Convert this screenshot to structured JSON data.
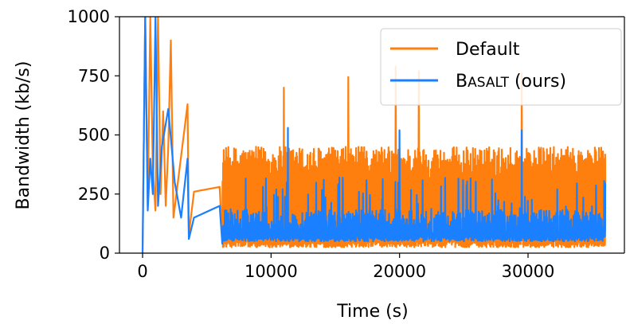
{
  "chart_data": {
    "type": "line",
    "xlabel": "Time (s)",
    "ylabel": "Bandwidth (kb/s)",
    "xlim": [
      -1800,
      37500
    ],
    "ylim": [
      0,
      1000
    ],
    "xticks": [
      0,
      10000,
      20000,
      30000
    ],
    "yticks": [
      0,
      250,
      500,
      750,
      1000
    ],
    "grid": false,
    "legend_position": "top-right",
    "series": [
      {
        "name": "Default",
        "color": "#ff7f0e",
        "x_range": [
          0,
          36000
        ],
        "baseline_approx": 40,
        "typical_peak_approx": 450,
        "points": [
          [
            0,
            0
          ],
          [
            200,
            1000
          ],
          [
            400,
            200
          ],
          [
            600,
            1000
          ],
          [
            800,
            350
          ],
          [
            1000,
            180
          ],
          [
            1200,
            1000
          ],
          [
            1400,
            250
          ],
          [
            1600,
            600
          ],
          [
            1800,
            200
          ],
          [
            2000,
            450
          ],
          [
            2200,
            900
          ],
          [
            2400,
            150
          ],
          [
            3500,
            630
          ],
          [
            3600,
            80
          ],
          [
            4000,
            260
          ],
          [
            6000,
            280
          ],
          [
            6200,
            50
          ],
          [
            11000,
            700
          ],
          [
            16000,
            745
          ],
          [
            19700,
            790
          ],
          [
            21500,
            770
          ],
          [
            29500,
            760
          ],
          [
            36000,
            420
          ]
        ]
      },
      {
        "name": "Basalt (ours)",
        "name_parts": [
          "B",
          "ASALT",
          " (ours)"
        ],
        "color": "#1a80ff",
        "x_range": [
          0,
          36000
        ],
        "baseline_approx": 70,
        "typical_peak_approx": 250,
        "points": [
          [
            0,
            0
          ],
          [
            200,
            1000
          ],
          [
            400,
            180
          ],
          [
            600,
            400
          ],
          [
            800,
            250
          ],
          [
            1000,
            1000
          ],
          [
            1200,
            200
          ],
          [
            1500,
            450
          ],
          [
            2000,
            610
          ],
          [
            2500,
            300
          ],
          [
            3000,
            150
          ],
          [
            3500,
            400
          ],
          [
            3600,
            60
          ],
          [
            4000,
            150
          ],
          [
            6000,
            200
          ],
          [
            6200,
            40
          ],
          [
            11300,
            530
          ],
          [
            20000,
            520
          ],
          [
            29500,
            520
          ],
          [
            36000,
            90
          ]
        ]
      }
    ]
  }
}
